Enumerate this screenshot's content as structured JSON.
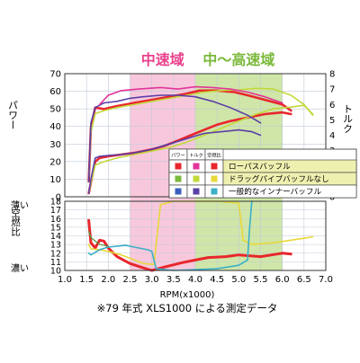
{
  "chart_data": {
    "type": "line",
    "xlabel": "RPM(x1000)",
    "xlim": [
      1.0,
      7.0
    ],
    "x_ticks": [
      "1.0",
      "1.5",
      "2.0",
      "2.5",
      "3.0",
      "3.5",
      "4.0",
      "4.5",
      "5.0",
      "5.5",
      "6.0",
      "6.5",
      "7.0"
    ],
    "footnote": "※79 年式 XLS1000 による測定データ",
    "bands": [
      {
        "label": "中速域",
        "from": 2.5,
        "to": 4.0,
        "color": "#f7c8dc",
        "text_color": "#e8408c"
      },
      {
        "label": "中〜高速域",
        "from": 4.0,
        "to": 6.0,
        "color": "#cfe6a8",
        "text_color": "#7ab83a"
      }
    ],
    "top_panel": {
      "ylabel_left": "パワー",
      "ylabel_right": "トルク",
      "power_lim": [
        0,
        70
      ],
      "power_ticks": [
        "0",
        "10",
        "20",
        "30",
        "40",
        "50",
        "60",
        "70"
      ],
      "torque_lim": [
        0,
        8
      ],
      "torque_ticks": [
        "0",
        "1",
        "2",
        "3",
        "4",
        "5",
        "6",
        "7",
        "8"
      ],
      "series": [
        {
          "name": "ローパスバッフル",
          "color": "#e8262c",
          "width": 2.6,
          "power": [
            [
              1.55,
              2
            ],
            [
              1.6,
              8
            ],
            [
              1.7,
              20
            ],
            [
              1.8,
              22
            ],
            [
              2.0,
              23
            ],
            [
              2.3,
              24
            ],
            [
              2.6,
              25
            ],
            [
              3.0,
              27
            ],
            [
              3.3,
              29
            ],
            [
              3.6,
              32
            ],
            [
              3.9,
              35
            ],
            [
              4.2,
              38
            ],
            [
              4.5,
              41
            ],
            [
              4.8,
              43
            ],
            [
              5.2,
              45
            ],
            [
              5.6,
              47
            ],
            [
              6.0,
              48
            ],
            [
              6.2,
              47
            ]
          ],
          "torque": [
            [
              1.55,
              1
            ],
            [
              1.6,
              4.5
            ],
            [
              1.7,
              5.8
            ],
            [
              1.9,
              5.7
            ],
            [
              2.2,
              5.9
            ],
            [
              2.6,
              6.1
            ],
            [
              3.0,
              6.3
            ],
            [
              3.4,
              6.5
            ],
            [
              3.8,
              6.7
            ],
            [
              4.1,
              6.9
            ],
            [
              4.5,
              6.9
            ],
            [
              4.9,
              6.8
            ],
            [
              5.2,
              6.6
            ],
            [
              5.6,
              6.3
            ],
            [
              6.0,
              6.0
            ],
            [
              6.2,
              5.6
            ]
          ]
        },
        {
          "name": "ドラッグパイプバッフルなし",
          "color": "#c2d83a",
          "width": 1.6,
          "power": [
            [
              1.55,
              2
            ],
            [
              1.6,
              8
            ],
            [
              1.7,
              18
            ],
            [
              1.9,
              20
            ],
            [
              2.2,
              22
            ],
            [
              2.6,
              24
            ],
            [
              3.0,
              26
            ],
            [
              3.4,
              28
            ],
            [
              3.8,
              31
            ],
            [
              4.2,
              35
            ],
            [
              4.6,
              39
            ],
            [
              5.0,
              43
            ],
            [
              5.4,
              47
            ],
            [
              5.8,
              50
            ],
            [
              6.2,
              51
            ],
            [
              6.5,
              52
            ],
            [
              6.7,
              47
            ]
          ],
          "torque": [
            [
              1.55,
              1
            ],
            [
              1.6,
              4.2
            ],
            [
              1.7,
              5.4
            ],
            [
              1.9,
              5.6
            ],
            [
              2.2,
              5.8
            ],
            [
              2.6,
              6.0
            ],
            [
              3.0,
              6.2
            ],
            [
              3.4,
              6.4
            ],
            [
              3.8,
              6.6
            ],
            [
              4.2,
              6.8
            ],
            [
              4.6,
              6.9
            ],
            [
              5.0,
              6.95
            ],
            [
              5.4,
              7.05
            ],
            [
              5.8,
              7.0
            ],
            [
              6.2,
              6.6
            ],
            [
              6.5,
              6.0
            ],
            [
              6.7,
              5.3
            ]
          ]
        },
        {
          "name": "一般的なインナーバッフル",
          "color": "#5a3fa6",
          "width": 1.6,
          "power": [
            [
              1.55,
              2
            ],
            [
              1.6,
              10
            ],
            [
              1.7,
              22
            ],
            [
              1.8,
              23
            ],
            [
              2.0,
              23.5
            ],
            [
              2.3,
              24
            ],
            [
              2.6,
              25
            ],
            [
              3.0,
              27
            ],
            [
              3.4,
              30
            ],
            [
              3.8,
              33
            ],
            [
              4.2,
              36
            ],
            [
              4.6,
              37
            ],
            [
              5.0,
              38
            ],
            [
              5.3,
              37
            ],
            [
              5.5,
              35
            ]
          ],
          "torque": [
            [
              1.55,
              1
            ],
            [
              1.6,
              4.8
            ],
            [
              1.7,
              5.8
            ],
            [
              1.9,
              6.1
            ],
            [
              2.2,
              6.2
            ],
            [
              2.5,
              6.4
            ],
            [
              2.8,
              6.5
            ],
            [
              3.2,
              6.6
            ],
            [
              3.6,
              6.6
            ],
            [
              4.0,
              6.5
            ],
            [
              4.4,
              6.2
            ],
            [
              4.8,
              5.8
            ],
            [
              5.2,
              5.3
            ],
            [
              5.5,
              4.8
            ]
          ]
        },
        {
          "name": "",
          "color": "#e2339a",
          "width": 1.6,
          "power": [],
          "torque": [
            [
              1.8,
              6.0
            ],
            [
              2.0,
              6.6
            ],
            [
              2.3,
              6.9
            ],
            [
              2.7,
              7.0
            ],
            [
              3.2,
              7.1
            ],
            [
              3.6,
              7.0
            ],
            [
              4.0,
              7.15
            ],
            [
              4.4,
              7.1
            ],
            [
              4.8,
              7.0
            ],
            [
              5.2,
              6.8
            ],
            [
              5.6,
              6.5
            ],
            [
              6.0,
              6.1
            ]
          ]
        }
      ]
    },
    "bottom_panel": {
      "ylabel": "空燃比",
      "label_top": "薄い",
      "label_bottom": "濃い",
      "afr_lim": [
        10,
        18
      ],
      "afr_ticks": [
        "10",
        "11",
        "12",
        "13",
        "14",
        "15",
        "16",
        "17",
        "18"
      ],
      "series": [
        {
          "color": "#e8262c",
          "width": 3,
          "values": [
            [
              1.55,
              15.8
            ],
            [
              1.6,
              13.2
            ],
            [
              1.7,
              12.6
            ],
            [
              1.8,
              13.5
            ],
            [
              1.9,
              13.4
            ],
            [
              2.0,
              12.6
            ],
            [
              2.2,
              11.6
            ],
            [
              2.5,
              10.8
            ],
            [
              2.8,
              10.3
            ],
            [
              3.0,
              10.0
            ],
            [
              3.3,
              10.4
            ],
            [
              3.7,
              10.9
            ],
            [
              4.0,
              11.2
            ],
            [
              4.3,
              11.5
            ],
            [
              4.7,
              11.6
            ],
            [
              5.0,
              11.8
            ],
            [
              5.5,
              11.6
            ],
            [
              6.0,
              12.0
            ],
            [
              6.2,
              11.9
            ]
          ]
        },
        {
          "color": "#e8d83a",
          "width": 1.6,
          "values": [
            [
              1.55,
              13
            ],
            [
              1.6,
              12.5
            ],
            [
              1.8,
              12.4
            ],
            [
              2.0,
              12.2
            ],
            [
              2.3,
              11.8
            ],
            [
              2.6,
              11.2
            ],
            [
              2.8,
              10.8
            ],
            [
              3.05,
              10.7
            ],
            [
              3.2,
              17.6
            ],
            [
              3.5,
              18
            ],
            [
              4.0,
              18
            ],
            [
              4.5,
              18
            ],
            [
              5.0,
              17.8
            ],
            [
              5.1,
              13.5
            ],
            [
              5.3,
              13.0
            ],
            [
              5.8,
              13.2
            ],
            [
              6.2,
              13.5
            ],
            [
              6.6,
              13.8
            ],
            [
              6.7,
              13.9
            ]
          ]
        },
        {
          "color": "#3ab0c8",
          "width": 1.6,
          "values": [
            [
              1.55,
              12
            ],
            [
              1.6,
              11.8
            ],
            [
              1.8,
              12.4
            ],
            [
              2.0,
              12.7
            ],
            [
              2.4,
              12.9
            ],
            [
              2.7,
              12.6
            ],
            [
              2.9,
              12.4
            ],
            [
              3.0,
              12.2
            ],
            [
              3.1,
              10.2
            ],
            [
              3.5,
              10.0
            ],
            [
              4.0,
              10.1
            ],
            [
              4.5,
              10.2
            ],
            [
              5.0,
              10.6
            ],
            [
              5.2,
              11.2
            ],
            [
              5.25,
              15
            ],
            [
              5.3,
              18
            ]
          ]
        },
        {
          "color": "#4aa040",
          "width": 1.2,
          "values": [
            [
              1.55,
              14.5
            ],
            [
              1.6,
              13.8
            ],
            [
              1.8,
              13.0
            ],
            [
              2.0,
              12.8
            ]
          ]
        }
      ]
    },
    "legend": {
      "headers": [
        "パワー",
        "トルク",
        "空燃比"
      ],
      "rows": [
        {
          "label": "ローパスバッフル",
          "colors": [
            "#e8262c",
            "#e2339a",
            "#e8262c"
          ],
          "bg": "#eef0b0"
        },
        {
          "label": "ドラッグパイプバッフルなし",
          "colors": [
            "#7ab83a",
            "#c2d83a",
            "#e8d83a"
          ],
          "bg": "#eef0b0"
        },
        {
          "label": "一般的なインナーバッフル",
          "colors": [
            "#3a5fc0",
            "#5a3fa6",
            "#3ab0c8"
          ],
          "bg": "#ffffff"
        }
      ]
    }
  }
}
